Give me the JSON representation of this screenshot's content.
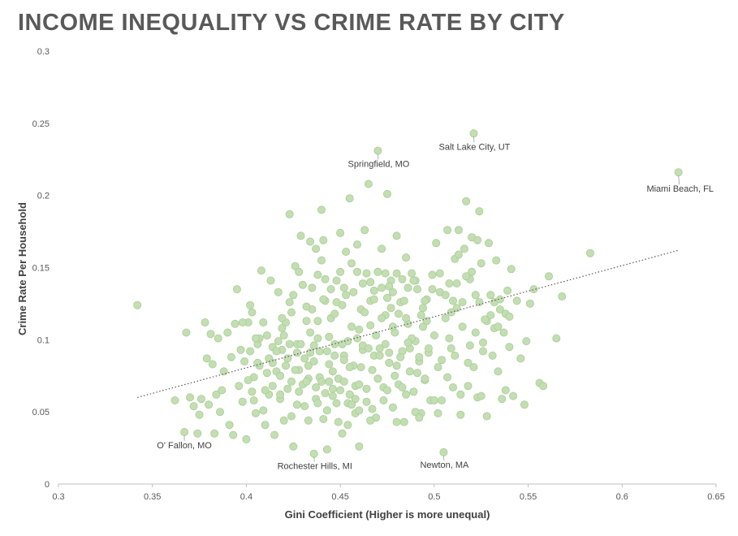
{
  "title": "INCOME INEQUALITY VS CRIME RATE BY CITY",
  "colors": {
    "point_fill": "#c3deb2",
    "point_stroke": "#a9cd96",
    "trend": "#595959",
    "axis": "#bfbfbf",
    "text": "#595959"
  },
  "chart_data": {
    "type": "scatter",
    "title": "INCOME INEQUALITY VS CRIME RATE BY CITY",
    "xlabel": "Gini Coefficient  (Higher is more unequal)",
    "ylabel": "Crime Rate Per Household",
    "xlim": [
      0.3,
      0.65
    ],
    "ylim": [
      0,
      0.3
    ],
    "xticks": [
      "0.3",
      "0.35",
      "0.4",
      "0.45",
      "0.5",
      "0.55",
      "0.6",
      "0.65"
    ],
    "yticks": [
      "0",
      "0.05",
      "0.1",
      "0.15",
      "0.2",
      "0.25",
      "0.3"
    ],
    "grid": false,
    "trendline": {
      "style": "dotted",
      "x": [
        0.342,
        0.63
      ],
      "y": [
        0.06,
        0.162
      ]
    },
    "annotations": [
      {
        "text": "Salt Lake City, UT",
        "x": 0.521,
        "y": 0.243
      },
      {
        "text": "Springfield, MO",
        "x": 0.47,
        "y": 0.231
      },
      {
        "text": "Miami Beach, FL",
        "x": 0.63,
        "y": 0.216
      },
      {
        "text": "O' Fallon, MO",
        "x": 0.367,
        "y": 0.036
      },
      {
        "text": "Rochester Hills, MI",
        "x": 0.436,
        "y": 0.021
      },
      {
        "text": "Newton, MA",
        "x": 0.505,
        "y": 0.022
      }
    ],
    "points": [
      [
        0.342,
        0.124
      ],
      [
        0.367,
        0.036
      ],
      [
        0.362,
        0.058
      ],
      [
        0.368,
        0.105
      ],
      [
        0.37,
        0.06
      ],
      [
        0.372,
        0.054
      ],
      [
        0.374,
        0.035
      ],
      [
        0.375,
        0.048
      ],
      [
        0.376,
        0.059
      ],
      [
        0.378,
        0.112
      ],
      [
        0.379,
        0.087
      ],
      [
        0.38,
        0.055
      ],
      [
        0.381,
        0.104
      ],
      [
        0.382,
        0.083
      ],
      [
        0.383,
        0.035
      ],
      [
        0.384,
        0.062
      ],
      [
        0.385,
        0.101
      ],
      [
        0.386,
        0.05
      ],
      [
        0.387,
        0.065
      ],
      [
        0.388,
        0.078
      ],
      [
        0.39,
        0.105
      ],
      [
        0.391,
        0.041
      ],
      [
        0.392,
        0.088
      ],
      [
        0.393,
        0.034
      ],
      [
        0.394,
        0.111
      ],
      [
        0.395,
        0.135
      ],
      [
        0.396,
        0.068
      ],
      [
        0.397,
        0.093
      ],
      [
        0.398,
        0.057
      ],
      [
        0.399,
        0.085
      ],
      [
        0.4,
        0.031
      ],
      [
        0.401,
        0.112
      ],
      [
        0.402,
        0.124
      ],
      [
        0.403,
        0.064
      ],
      [
        0.404,
        0.074
      ],
      [
        0.405,
        0.049
      ],
      [
        0.406,
        0.097
      ],
      [
        0.407,
        0.082
      ],
      [
        0.408,
        0.148
      ],
      [
        0.409,
        0.112
      ],
      [
        0.41,
        0.041
      ],
      [
        0.411,
        0.103
      ],
      [
        0.412,
        0.087
      ],
      [
        0.413,
        0.141
      ],
      [
        0.414,
        0.068
      ],
      [
        0.415,
        0.034
      ],
      [
        0.416,
        0.078
      ],
      [
        0.417,
        0.133
      ],
      [
        0.418,
        0.059
      ],
      [
        0.419,
        0.093
      ],
      [
        0.42,
        0.044
      ],
      [
        0.421,
        0.112
      ],
      [
        0.422,
        0.087
      ],
      [
        0.423,
        0.187
      ],
      [
        0.424,
        0.071
      ],
      [
        0.425,
        0.026
      ],
      [
        0.426,
        0.151
      ],
      [
        0.427,
        0.097
      ],
      [
        0.428,
        0.064
      ],
      [
        0.429,
        0.172
      ],
      [
        0.43,
        0.138
      ],
      [
        0.431,
        0.054
      ],
      [
        0.432,
        0.113
      ],
      [
        0.433,
        0.082
      ],
      [
        0.434,
        0.091
      ],
      [
        0.435,
        0.121
      ],
      [
        0.436,
        0.021
      ],
      [
        0.437,
        0.067
      ],
      [
        0.438,
        0.101
      ],
      [
        0.439,
        0.074
      ],
      [
        0.44,
        0.19
      ],
      [
        0.441,
        0.045
      ],
      [
        0.442,
        0.127
      ],
      [
        0.443,
        0.024
      ],
      [
        0.444,
        0.083
      ],
      [
        0.445,
        0.115
      ],
      [
        0.446,
        0.061
      ],
      [
        0.447,
        0.097
      ],
      [
        0.448,
        0.141
      ],
      [
        0.449,
        0.073
      ],
      [
        0.45,
        0.174
      ],
      [
        0.451,
        0.035
      ],
      [
        0.452,
        0.089
      ],
      [
        0.453,
        0.131
      ],
      [
        0.454,
        0.056
      ],
      [
        0.455,
        0.198
      ],
      [
        0.456,
        0.109
      ],
      [
        0.457,
        0.082
      ],
      [
        0.458,
        0.068
      ],
      [
        0.459,
        0.147
      ],
      [
        0.46,
        0.026
      ],
      [
        0.461,
        0.121
      ],
      [
        0.462,
        0.093
      ],
      [
        0.463,
        0.176
      ],
      [
        0.464,
        0.057
      ],
      [
        0.465,
        0.208
      ],
      [
        0.466,
        0.11
      ],
      [
        0.467,
        0.079
      ],
      [
        0.468,
        0.134
      ],
      [
        0.469,
        0.046
      ],
      [
        0.47,
        0.231
      ],
      [
        0.471,
        0.094
      ],
      [
        0.472,
        0.163
      ],
      [
        0.473,
        0.067
      ],
      [
        0.474,
        0.117
      ],
      [
        0.475,
        0.201
      ],
      [
        0.476,
        0.084
      ],
      [
        0.477,
        0.141
      ],
      [
        0.478,
        0.053
      ],
      [
        0.479,
        0.105
      ],
      [
        0.48,
        0.172
      ],
      [
        0.481,
        0.069
      ],
      [
        0.482,
        0.126
      ],
      [
        0.483,
        0.092
      ],
      [
        0.484,
        0.043
      ],
      [
        0.485,
        0.157
      ],
      [
        0.486,
        0.111
      ],
      [
        0.487,
        0.078
      ],
      [
        0.488,
        0.146
      ],
      [
        0.489,
        0.064
      ],
      [
        0.49,
        0.099
      ],
      [
        0.491,
        0.135
      ],
      [
        0.492,
        0.085
      ],
      [
        0.493,
        0.049
      ],
      [
        0.494,
        0.122
      ],
      [
        0.495,
        0.072
      ],
      [
        0.496,
        0.113
      ],
      [
        0.497,
        0.091
      ],
      [
        0.498,
        0.058
      ],
      [
        0.499,
        0.145
      ],
      [
        0.5,
        0.103
      ],
      [
        0.501,
        0.167
      ],
      [
        0.502,
        0.081
      ],
      [
        0.503,
        0.133
      ],
      [
        0.504,
        0.058
      ],
      [
        0.505,
        0.022
      ],
      [
        0.506,
        0.115
      ],
      [
        0.507,
        0.176
      ],
      [
        0.508,
        0.139
      ],
      [
        0.509,
        0.094
      ],
      [
        0.51,
        0.067
      ],
      [
        0.511,
        0.156
      ],
      [
        0.512,
        0.122
      ],
      [
        0.513,
        0.176
      ],
      [
        0.514,
        0.048
      ],
      [
        0.515,
        0.109
      ],
      [
        0.516,
        0.163
      ],
      [
        0.517,
        0.196
      ],
      [
        0.518,
        0.084
      ],
      [
        0.519,
        0.142
      ],
      [
        0.52,
        0.171
      ],
      [
        0.521,
        0.243
      ],
      [
        0.522,
        0.131
      ],
      [
        0.523,
        0.06
      ],
      [
        0.524,
        0.189
      ],
      [
        0.525,
        0.153
      ],
      [
        0.526,
        0.098
      ],
      [
        0.527,
        0.114
      ],
      [
        0.528,
        0.047
      ],
      [
        0.529,
        0.167
      ],
      [
        0.53,
        0.131
      ],
      [
        0.531,
        0.089
      ],
      [
        0.532,
        0.108
      ],
      [
        0.533,
        0.155
      ],
      [
        0.534,
        0.078
      ],
      [
        0.535,
        0.121
      ],
      [
        0.537,
        0.105
      ],
      [
        0.538,
        0.065
      ],
      [
        0.539,
        0.134
      ],
      [
        0.54,
        0.095
      ],
      [
        0.541,
        0.149
      ],
      [
        0.542,
        0.061
      ],
      [
        0.544,
        0.127
      ],
      [
        0.546,
        0.087
      ],
      [
        0.548,
        0.055
      ],
      [
        0.549,
        0.099
      ],
      [
        0.551,
        0.125
      ],
      [
        0.553,
        0.135
      ],
      [
        0.556,
        0.07
      ],
      [
        0.558,
        0.068
      ],
      [
        0.561,
        0.144
      ],
      [
        0.565,
        0.101
      ],
      [
        0.568,
        0.13
      ],
      [
        0.583,
        0.16
      ],
      [
        0.63,
        0.216
      ],
      [
        0.401,
        0.072
      ],
      [
        0.404,
        0.058
      ],
      [
        0.409,
        0.051
      ],
      [
        0.412,
        0.062
      ],
      [
        0.418,
        0.075
      ],
      [
        0.421,
        0.082
      ],
      [
        0.424,
        0.047
      ],
      [
        0.427,
        0.055
      ],
      [
        0.43,
        0.069
      ],
      [
        0.433,
        0.044
      ],
      [
        0.437,
        0.059
      ],
      [
        0.44,
        0.071
      ],
      [
        0.443,
        0.051
      ],
      [
        0.446,
        0.066
      ],
      [
        0.449,
        0.043
      ],
      [
        0.452,
        0.071
      ],
      [
        0.455,
        0.062
      ],
      [
        0.458,
        0.049
      ],
      [
        0.461,
        0.081
      ],
      [
        0.464,
        0.066
      ],
      [
        0.467,
        0.052
      ],
      [
        0.47,
        0.073
      ],
      [
        0.473,
        0.058
      ],
      [
        0.476,
        0.091
      ],
      [
        0.479,
        0.075
      ],
      [
        0.482,
        0.088
      ],
      [
        0.485,
        0.062
      ],
      [
        0.488,
        0.101
      ],
      [
        0.491,
        0.077
      ],
      [
        0.494,
        0.109
      ],
      [
        0.407,
        0.101
      ],
      [
        0.414,
        0.095
      ],
      [
        0.419,
        0.108
      ],
      [
        0.424,
        0.119
      ],
      [
        0.429,
        0.097
      ],
      [
        0.434,
        0.105
      ],
      [
        0.438,
        0.113
      ],
      [
        0.441,
        0.128
      ],
      [
        0.444,
        0.102
      ],
      [
        0.447,
        0.118
      ],
      [
        0.451,
        0.124
      ],
      [
        0.454,
        0.099
      ],
      [
        0.457,
        0.133
      ],
      [
        0.46,
        0.107
      ],
      [
        0.463,
        0.119
      ],
      [
        0.466,
        0.127
      ],
      [
        0.469,
        0.103
      ],
      [
        0.472,
        0.115
      ],
      [
        0.475,
        0.129
      ],
      [
        0.478,
        0.109
      ],
      [
        0.481,
        0.118
      ],
      [
        0.484,
        0.127
      ],
      [
        0.487,
        0.094
      ],
      [
        0.49,
        0.141
      ],
      [
        0.493,
        0.117
      ],
      [
        0.496,
        0.128
      ],
      [
        0.428,
        0.079
      ],
      [
        0.433,
        0.073
      ],
      [
        0.436,
        0.085
      ],
      [
        0.443,
        0.092
      ],
      [
        0.446,
        0.078
      ],
      [
        0.452,
        0.086
      ],
      [
        0.455,
        0.081
      ],
      [
        0.462,
        0.096
      ],
      [
        0.468,
        0.089
      ],
      [
        0.474,
        0.097
      ],
      [
        0.48,
        0.082
      ],
      [
        0.486,
        0.098
      ],
      [
        0.492,
        0.088
      ],
      [
        0.398,
        0.112
      ],
      [
        0.402,
        0.092
      ],
      [
        0.406,
        0.084
      ],
      [
        0.411,
        0.077
      ],
      [
        0.416,
        0.092
      ],
      [
        0.418,
        0.062
      ],
      [
        0.422,
        0.066
      ],
      [
        0.426,
        0.079
      ],
      [
        0.432,
        0.071
      ],
      [
        0.438,
        0.056
      ],
      [
        0.442,
        0.063
      ],
      [
        0.448,
        0.056
      ],
      [
        0.454,
        0.041
      ],
      [
        0.458,
        0.059
      ],
      [
        0.46,
        0.069
      ],
      [
        0.462,
        0.139
      ],
      [
        0.464,
        0.146
      ],
      [
        0.466,
        0.14
      ],
      [
        0.468,
        0.128
      ],
      [
        0.47,
        0.147
      ],
      [
        0.472,
        0.136
      ],
      [
        0.474,
        0.146
      ],
      [
        0.476,
        0.137
      ],
      [
        0.478,
        0.133
      ],
      [
        0.48,
        0.146
      ],
      [
        0.483,
        0.142
      ],
      [
        0.486,
        0.136
      ],
      [
        0.489,
        0.141
      ],
      [
        0.45,
        0.147
      ],
      [
        0.452,
        0.136
      ],
      [
        0.448,
        0.126
      ],
      [
        0.445,
        0.135
      ],
      [
        0.442,
        0.142
      ],
      [
        0.438,
        0.145
      ],
      [
        0.435,
        0.136
      ],
      [
        0.432,
        0.123
      ],
      [
        0.428,
        0.147
      ],
      [
        0.425,
        0.131
      ],
      [
        0.456,
        0.153
      ],
      [
        0.459,
        0.166
      ],
      [
        0.453,
        0.161
      ],
      [
        0.437,
        0.163
      ],
      [
        0.44,
        0.155
      ],
      [
        0.441,
        0.169
      ],
      [
        0.434,
        0.168
      ],
      [
        0.5,
        0.058
      ],
      [
        0.504,
        0.086
      ],
      [
        0.506,
        0.131
      ],
      [
        0.508,
        0.101
      ],
      [
        0.51,
        0.127
      ],
      [
        0.512,
        0.139
      ],
      [
        0.514,
        0.062
      ],
      [
        0.518,
        0.068
      ],
      [
        0.52,
        0.147
      ],
      [
        0.522,
        0.105
      ],
      [
        0.524,
        0.126
      ],
      [
        0.526,
        0.092
      ],
      [
        0.528,
        0.113
      ],
      [
        0.53,
        0.117
      ],
      [
        0.532,
        0.126
      ],
      [
        0.534,
        0.109
      ],
      [
        0.536,
        0.059
      ],
      [
        0.538,
        0.118
      ],
      [
        0.54,
        0.116
      ],
      [
        0.49,
        0.05
      ],
      [
        0.492,
        0.046
      ],
      [
        0.495,
        0.073
      ],
      [
        0.497,
        0.094
      ],
      [
        0.502,
        0.049
      ],
      [
        0.507,
        0.074
      ],
      [
        0.511,
        0.089
      ],
      [
        0.515,
        0.126
      ],
      [
        0.519,
        0.096
      ],
      [
        0.521,
        0.081
      ],
      [
        0.525,
        0.061
      ],
      [
        0.48,
        0.043
      ],
      [
        0.483,
        0.067
      ],
      [
        0.475,
        0.065
      ],
      [
        0.466,
        0.044
      ],
      [
        0.46,
        0.051
      ],
      [
        0.456,
        0.055
      ],
      [
        0.45,
        0.065
      ],
      [
        0.444,
        0.071
      ],
      [
        0.439,
        0.092
      ],
      [
        0.436,
        0.096
      ],
      [
        0.431,
        0.087
      ],
      [
        0.427,
        0.091
      ],
      [
        0.423,
        0.097
      ],
      [
        0.42,
        0.103
      ],
      [
        0.417,
        0.099
      ],
      [
        0.414,
        0.084
      ],
      [
        0.41,
        0.065
      ],
      [
        0.405,
        0.101
      ],
      [
        0.403,
        0.119
      ],
      [
        0.419,
        0.115
      ],
      [
        0.423,
        0.126
      ],
      [
        0.447,
        0.089
      ],
      [
        0.451,
        0.097
      ],
      [
        0.459,
        0.101
      ],
      [
        0.465,
        0.094
      ],
      [
        0.471,
        0.089
      ],
      [
        0.477,
        0.122
      ],
      [
        0.485,
        0.115
      ],
      [
        0.495,
        0.127
      ],
      [
        0.499,
        0.135
      ],
      [
        0.503,
        0.146
      ],
      [
        0.509,
        0.119
      ],
      [
        0.513,
        0.159
      ],
      [
        0.517,
        0.144
      ],
      [
        0.523,
        0.169
      ],
      [
        0.527,
        0.114
      ],
      [
        0.535,
        0.128
      ]
    ]
  }
}
